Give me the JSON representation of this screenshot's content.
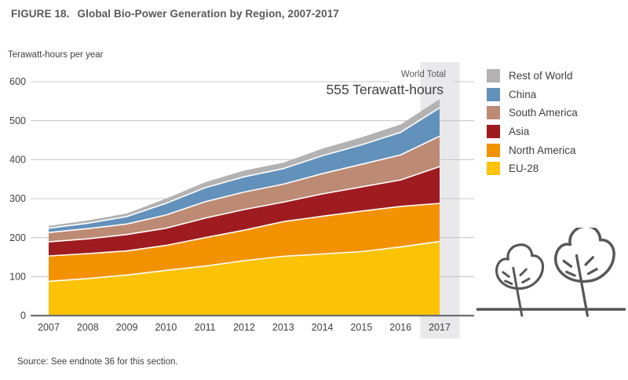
{
  "figure": {
    "label": "FIGURE 18.",
    "title": "Global Bio-Power Generation by Region, 2007-2017"
  },
  "axis": {
    "unit_label": "Terawatt-hours per year",
    "yticks": [
      0,
      100,
      200,
      300,
      400,
      500,
      600
    ]
  },
  "annotation": {
    "line1": "World Total",
    "line2": "555 Terawatt-hours"
  },
  "legend": {
    "items": [
      {
        "label": "Rest of World",
        "color": "#b3b1b1"
      },
      {
        "label": "China",
        "color": "#6291bb"
      },
      {
        "label": "South America",
        "color": "#bd8a73"
      },
      {
        "label": "Asia",
        "color": "#9e1c20"
      },
      {
        "label": "North America",
        "color": "#f39200"
      },
      {
        "label": "EU-28",
        "color": "#fcc306"
      }
    ]
  },
  "chart_data": {
    "type": "area",
    "stacked": true,
    "title": "Global Bio-Power Generation by Region, 2007-2017",
    "ylabel": "Terawatt-hours per year",
    "ylim": [
      0,
      600
    ],
    "yticks": [
      0,
      100,
      200,
      300,
      400,
      500,
      600
    ],
    "grid": "horizontal",
    "legend_position": "right",
    "x": [
      2007,
      2008,
      2009,
      2010,
      2011,
      2012,
      2013,
      2014,
      2015,
      2016,
      2017
    ],
    "series": [
      {
        "name": "EU-28",
        "color": "#fcc306",
        "values": [
          88,
          95,
          104,
          116,
          127,
          141,
          152,
          158,
          164,
          176,
          190
        ]
      },
      {
        "name": "North America",
        "color": "#f39200",
        "values": [
          65,
          64,
          62,
          64,
          73,
          78,
          89,
          97,
          104,
          104,
          98
        ]
      },
      {
        "name": "Asia",
        "color": "#9e1c20",
        "values": [
          36,
          38,
          42,
          44,
          50,
          53,
          50,
          57,
          62,
          68,
          94
        ]
      },
      {
        "name": "South America",
        "color": "#bd8a73",
        "values": [
          24,
          26,
          27,
          34,
          42,
          45,
          46,
          52,
          58,
          64,
          78
        ]
      },
      {
        "name": "China",
        "color": "#6291bb",
        "values": [
          11,
          14,
          19,
          30,
          36,
          39,
          40,
          46,
          50,
          58,
          73
        ]
      },
      {
        "name": "Rest of World",
        "color": "#b3b1b1",
        "values": [
          6,
          7,
          8,
          12,
          14,
          16,
          15,
          18,
          19,
          20,
          22
        ]
      }
    ],
    "totals": [
      230,
      244,
      262,
      300,
      342,
      372,
      392,
      428,
      457,
      490,
      555
    ],
    "highlight_x": 2017,
    "world_total_2017": 555,
    "annotation": "World Total 555 Terawatt-hours"
  },
  "source": "Source: See endnote 36 for this section.",
  "colors": {
    "grid": "#c8c8ca",
    "axis": "#6f6e72",
    "highlight_band": "#e9e9ec",
    "tick_text": "#414042",
    "plant_stroke": "#57575a",
    "separator": "#ffffff"
  }
}
